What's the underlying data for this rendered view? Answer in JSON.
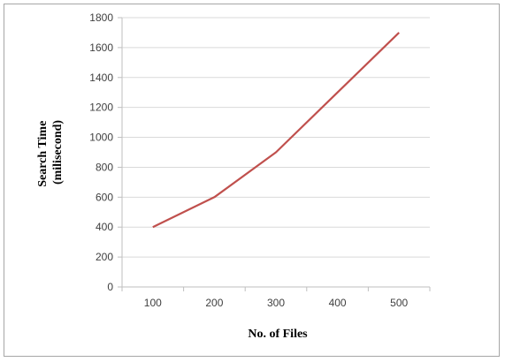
{
  "chart_data": {
    "type": "line",
    "x": [
      100,
      200,
      300,
      400,
      500
    ],
    "categories": [
      "100",
      "200",
      "300",
      "400",
      "500"
    ],
    "series": [
      {
        "values": [
          400,
          600,
          900,
          1300,
          1700
        ],
        "color": "#c0504d"
      }
    ],
    "xlabel": "No. of Files",
    "ylabel_lines": [
      "Search Time",
      "(milisecond)"
    ],
    "ylim": [
      0,
      1800
    ],
    "yticks": [
      0,
      200,
      400,
      600,
      800,
      1000,
      1200,
      1400,
      1600,
      1800
    ],
    "grid": true,
    "gridColor": "#d9d9d9",
    "axisColor": "#bfbfbf"
  }
}
